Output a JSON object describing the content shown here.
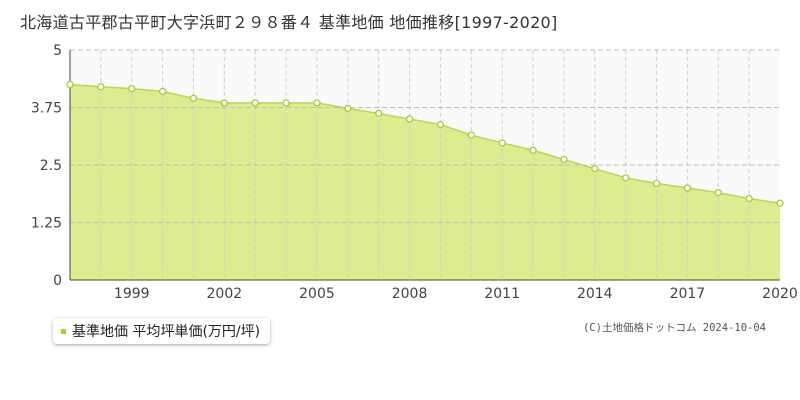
{
  "title": "北海道古平郡古平町大字浜町２９８番４ 基準地価 地価推移[1997-2020]",
  "credit": "(C)土地価格ドットコム 2024-10-04",
  "colors": {
    "area": "#dcec91",
    "line": "#b9da45",
    "marker_stroke": "#a6cc34",
    "legend": "#a6d132"
  },
  "chart_data": {
    "type": "area",
    "title": "北海道古平郡古平町大字浜町２９８番４ 基準地価 地価推移[1997-2020]",
    "xlabel": "",
    "ylabel": "",
    "ylim": [
      0,
      5
    ],
    "xlim": [
      1997,
      2020
    ],
    "y_ticks": [
      "0",
      "1.25",
      "2.5",
      "3.75",
      "5"
    ],
    "y_tick_values": [
      0,
      1.25,
      2.5,
      3.75,
      5
    ],
    "x_ticks": [
      "1999",
      "2002",
      "2005",
      "2008",
      "2011",
      "2014",
      "2017",
      "2020"
    ],
    "x_tick_values": [
      1999,
      2002,
      2005,
      2008,
      2011,
      2014,
      2017,
      2020
    ],
    "grid": true,
    "legend_position": "bottom-left",
    "series": [
      {
        "name": "基準地価 平均坪単価(万円/坪)",
        "x": [
          1997,
          1998,
          1999,
          2000,
          2001,
          2002,
          2003,
          2004,
          2005,
          2006,
          2007,
          2008,
          2009,
          2010,
          2011,
          2012,
          2013,
          2014,
          2015,
          2016,
          2017,
          2018,
          2019,
          2020
        ],
        "values": [
          4.25,
          4.2,
          4.16,
          4.1,
          3.95,
          3.85,
          3.85,
          3.85,
          3.85,
          3.73,
          3.62,
          3.5,
          3.38,
          3.15,
          2.98,
          2.82,
          2.62,
          2.42,
          2.22,
          2.1,
          2.0,
          1.9,
          1.77,
          1.67
        ]
      }
    ]
  },
  "legend": {
    "label": "基準地価 平均坪単価(万円/坪)"
  }
}
